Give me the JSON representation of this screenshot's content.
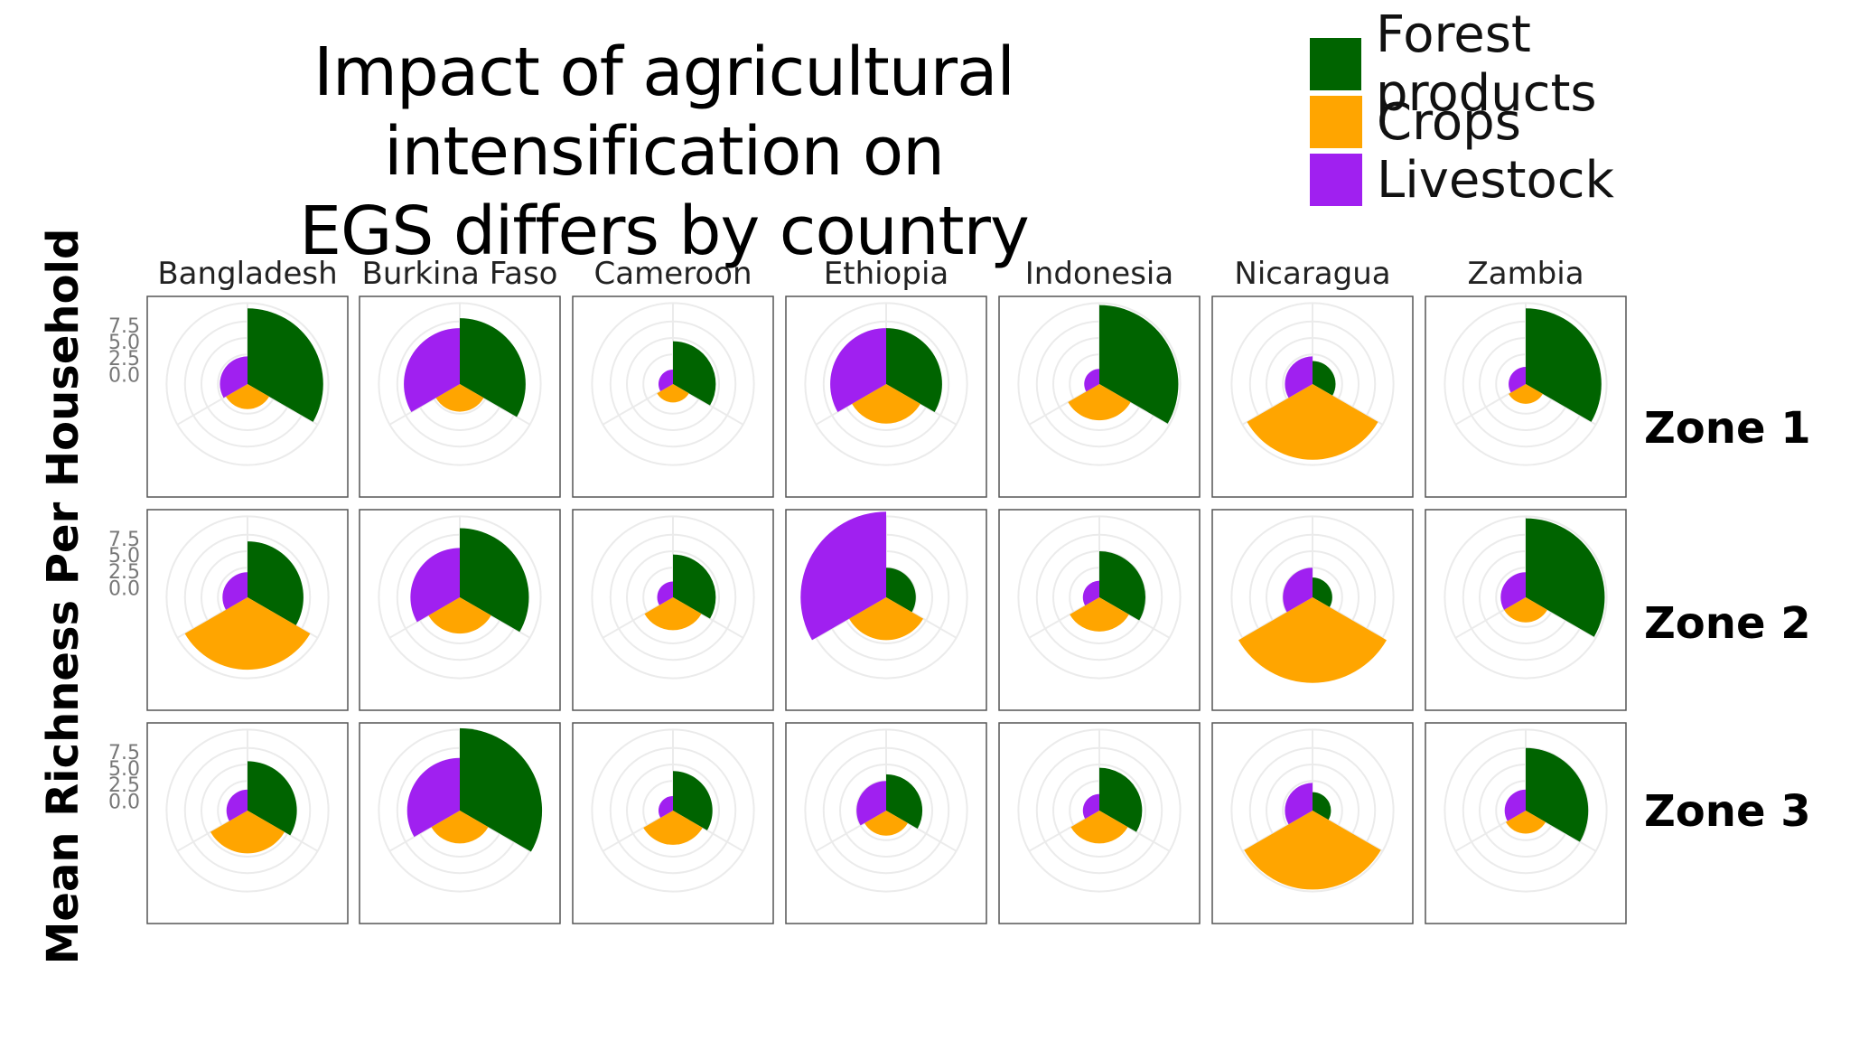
{
  "slide": {
    "title_line1": "Impact of agricultural intensification on",
    "title_line2": "EGS differs by country",
    "y_axis_label": "Mean Richness Per Household"
  },
  "legend": [
    {
      "label": "Forest products",
      "color": "#006400"
    },
    {
      "label": "Crops",
      "color": "#FFA500"
    },
    {
      "label": "Livestock",
      "color": "#A020F0"
    }
  ],
  "chart_data": {
    "type": "polar-bar",
    "radial_axis": {
      "ticks": [
        "0.0",
        "2.5",
        "5.0",
        "7.5"
      ],
      "tick_values": [
        0,
        2.5,
        5,
        7.5
      ],
      "range": [
        -2,
        12
      ]
    },
    "grid": true,
    "legend_position": "top-right",
    "categories": [
      "Forest products",
      "Crops",
      "Livestock"
    ],
    "countries": [
      "Bangladesh",
      "Burkina Faso",
      "Cameroon",
      "Ethiopia",
      "Indonesia",
      "Nicaragua",
      "Zambia"
    ],
    "zones": [
      "Zone 1",
      "Zone 2",
      "Zone 3"
    ],
    "values": [
      [
        [
          9.5,
          1.8,
          2.2
        ],
        [
          8.0,
          2.2,
          6.5
        ],
        [
          4.5,
          0.8,
          0.2
        ],
        [
          6.5,
          4.0,
          6.5
        ],
        [
          10.0,
          3.5,
          0.3
        ],
        [
          1.5,
          9.5,
          2.2
        ],
        [
          9.5,
          1.0,
          0.6
        ]
      ],
      [
        [
          6.5,
          9.0,
          1.8
        ],
        [
          8.5,
          3.5,
          5.5
        ],
        [
          4.5,
          3.0,
          0.4
        ],
        [
          2.5,
          4.5,
          11.0
        ],
        [
          5.0,
          3.2,
          0.5
        ],
        [
          1.0,
          11.0,
          2.5
        ],
        [
          10.0,
          1.8,
          1.8
        ]
      ],
      [
        [
          5.5,
          4.5,
          1.2
        ],
        [
          10.5,
          3.0,
          6.0
        ],
        [
          4.0,
          3.2,
          0.2
        ],
        [
          3.5,
          1.8,
          2.5
        ],
        [
          4.5,
          3.0,
          0.5
        ],
        [
          0.8,
          10.0,
          2.2
        ],
        [
          7.5,
          1.5,
          1.2
        ]
      ]
    ]
  }
}
